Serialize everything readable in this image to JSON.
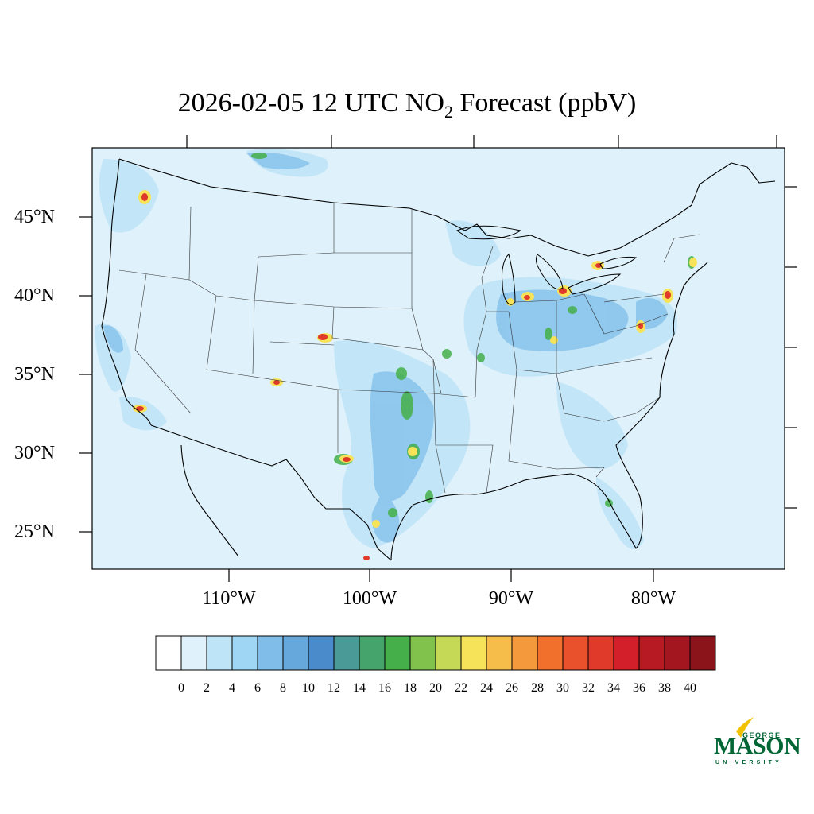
{
  "title": {
    "prefix": "2026-02-05 12 UTC NO",
    "subscript": "2",
    "suffix": " Forecast (ppbV)"
  },
  "map": {
    "lat_labels": [
      "45°N",
      "40°N",
      "35°N",
      "30°N",
      "25°N"
    ],
    "lon_labels": [
      "110°W",
      "100°W",
      "90°W",
      "80°W"
    ],
    "background_color": "#dff1fb"
  },
  "colorbar": {
    "labels": [
      "0",
      "2",
      "4",
      "6",
      "8",
      "10",
      "12",
      "14",
      "16",
      "18",
      "20",
      "22",
      "24",
      "26",
      "28",
      "30",
      "32",
      "34",
      "36",
      "38",
      "40"
    ],
    "colors": [
      "#ffffff",
      "#dff1fb",
      "#bde4f7",
      "#9fd6f4",
      "#80bde9",
      "#67a8dc",
      "#4a8ccb",
      "#4a9a98",
      "#44a46c",
      "#45b04a",
      "#80c24b",
      "#c5d957",
      "#f7e35a",
      "#f6bd4a",
      "#f49a3c",
      "#f1702c",
      "#e8512c",
      "#df3a2a",
      "#d21f2a",
      "#b81a24",
      "#a4161f",
      "#8a141a"
    ]
  },
  "logo": {
    "george": "GEORGE",
    "mason": "MASON",
    "university": "UNIVERSITY",
    "color": "#006633",
    "accent": "#f2c200"
  }
}
